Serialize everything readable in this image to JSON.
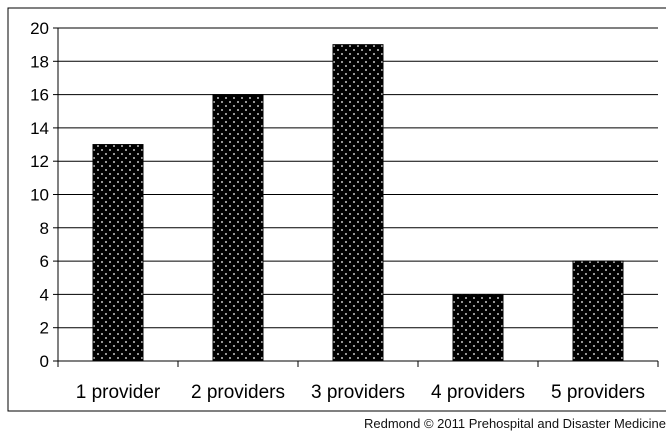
{
  "chart_data": {
    "type": "bar",
    "categories": [
      "1 provider",
      "2 providers",
      "3 providers",
      "4 providers",
      "5 providers"
    ],
    "values": [
      13,
      16,
      19,
      4,
      6
    ],
    "title": "",
    "xlabel": "",
    "ylabel": "",
    "ylim": [
      0,
      20
    ],
    "yticks": [
      "0",
      "2",
      "4",
      "6",
      "8",
      "10",
      "12",
      "14",
      "16",
      "18",
      "20"
    ],
    "grid": true,
    "legend": "none",
    "bar_color": "#000000",
    "dot_color": "#ffffff"
  },
  "credit": "Redmond © 2011 Prehospital and Disaster Medicine"
}
